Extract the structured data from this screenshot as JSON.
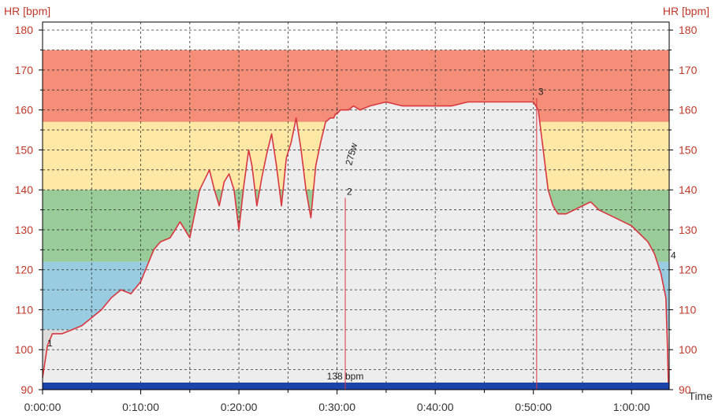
{
  "colors": {
    "axis_label": "#c0392b",
    "time_label": "#333333",
    "zone_red": "#f58e78",
    "zone_yellow": "#fde8a6",
    "zone_green": "#99cc99",
    "zone_blue": "#99cce0",
    "zone_gray": "#dcdcdc",
    "area_fill": "#eeedee",
    "hr_line": "#d9363e",
    "baseline_band": "#1a44a8",
    "marker_line": "#d9363e"
  },
  "chart_data": {
    "type": "area",
    "ylabel_left": "HR [bpm]",
    "ylabel_right": "HR [bpm]",
    "xlabel": "Time",
    "ylim": [
      90,
      182
    ],
    "xlim_seconds": [
      0,
      3830
    ],
    "y_ticks": [
      "90",
      "100",
      "110",
      "120",
      "130",
      "140",
      "150",
      "160",
      "170",
      "180"
    ],
    "x_ticks": [
      {
        "label": "0:00:00",
        "t": 0
      },
      {
        "label": "0:10:00",
        "t": 600
      },
      {
        "label": "0:20:00",
        "t": 1200
      },
      {
        "label": "0:30:00",
        "t": 1800
      },
      {
        "label": "0:40:00",
        "t": 2400
      },
      {
        "label": "0:50:00",
        "t": 3000
      },
      {
        "label": "1:00:00",
        "t": 3600
      }
    ],
    "grid": true,
    "zones": [
      {
        "from": 157,
        "to": 175,
        "color_key": "zone_red"
      },
      {
        "from": 140,
        "to": 157,
        "color_key": "zone_yellow"
      },
      {
        "from": 122,
        "to": 140,
        "color_key": "zone_green"
      },
      {
        "from": 105,
        "to": 122,
        "color_key": "zone_blue"
      },
      {
        "from": 90,
        "to": 105,
        "color_key": "zone_gray"
      }
    ],
    "series": [
      {
        "t": [
          0,
          30,
          60,
          120,
          180,
          240,
          300,
          360,
          420,
          480,
          540,
          600,
          640,
          680,
          720,
          780,
          840,
          900,
          960,
          1020,
          1050,
          1080,
          1110,
          1140,
          1170,
          1200,
          1230,
          1260,
          1280,
          1310,
          1340,
          1370,
          1400,
          1430,
          1460,
          1490,
          1520,
          1550,
          1580,
          1610,
          1640,
          1670,
          1700,
          1730,
          1760,
          1780,
          1790,
          1800,
          1820,
          1840,
          1870,
          1900,
          1940,
          2000,
          2100,
          2200,
          2300,
          2400,
          2500,
          2600,
          2700,
          2800,
          2900,
          3000,
          3030,
          3060,
          3090,
          3120,
          3150,
          3200,
          3250,
          3300,
          3350,
          3400,
          3450,
          3500,
          3550,
          3600,
          3650,
          3700,
          3740,
          3780,
          3810,
          3820,
          3825
        ],
        "values": [
          93,
          101,
          104,
          104,
          105,
          106,
          108,
          110,
          113,
          115,
          114,
          117,
          121,
          125,
          127,
          128,
          132,
          128,
          140,
          145,
          140,
          136,
          142,
          144,
          140,
          130,
          141,
          150,
          146,
          136,
          143,
          149,
          154,
          146,
          136,
          148,
          152,
          158,
          150,
          140,
          133,
          146,
          152,
          157,
          158,
          158,
          159,
          159,
          160,
          160,
          160,
          161,
          160,
          161,
          162,
          161,
          161,
          161,
          161,
          162,
          162,
          162,
          162,
          162,
          160,
          150,
          140,
          136,
          134,
          134,
          135,
          136,
          137,
          135,
          134,
          133,
          132,
          131,
          129,
          127,
          124,
          119,
          113,
          100,
          91
        ]
      }
    ],
    "markers": [
      {
        "t": 0,
        "hr": 100,
        "label": "1"
      },
      {
        "t": 1850,
        "hr": 138,
        "label": "2",
        "value_label": "138 bpm",
        "power_label": "275w"
      },
      {
        "t": 3020,
        "hr": 163,
        "label": "3"
      },
      {
        "t": 3830,
        "hr": 122,
        "label": "4"
      }
    ]
  }
}
